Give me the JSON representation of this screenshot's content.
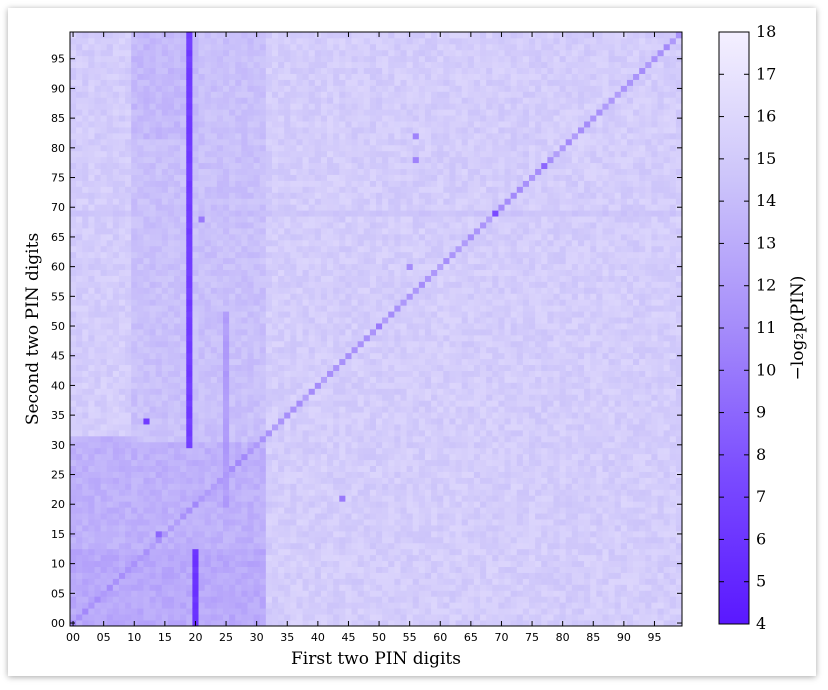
{
  "chart_data": {
    "type": "heatmap",
    "title": "",
    "xlabel": "First two PIN digits",
    "ylabel": "Second two PIN digits",
    "x_ticks": [
      "00",
      "05",
      "10",
      "15",
      "20",
      "25",
      "30",
      "35",
      "40",
      "45",
      "50",
      "55",
      "60",
      "65",
      "70",
      "75",
      "80",
      "85",
      "90",
      "95"
    ],
    "y_ticks": [
      "00",
      "05",
      "10",
      "15",
      "20",
      "25",
      "30",
      "35",
      "40",
      "45",
      "50",
      "55",
      "60",
      "65",
      "70",
      "75",
      "80",
      "85",
      "90",
      "95"
    ],
    "xlim": [
      0,
      99
    ],
    "ylim": [
      0,
      99
    ],
    "colorbar": {
      "label": "−log₂p(PIN)",
      "min": 4,
      "max": 18,
      "ticks": [
        "4",
        "5",
        "6",
        "7",
        "8",
        "9",
        "10",
        "11",
        "12",
        "13",
        "14",
        "15",
        "16",
        "17",
        "18"
      ],
      "color_low": "#5a18ff",
      "color_high": "#f4f0ff"
    },
    "background_value": 15.2,
    "regions": [
      {
        "x": [
          0,
          31
        ],
        "y": [
          0,
          31
        ],
        "value": 13.3
      },
      {
        "x": [
          0,
          31
        ],
        "y": [
          0,
          12
        ],
        "value": 12.8
      },
      {
        "x": [
          10,
          31
        ],
        "y": [
          31,
          99
        ],
        "value": 14.3
      },
      {
        "x": [
          10,
          20
        ],
        "y": [
          82,
          99
        ],
        "value": 13.8
      }
    ],
    "diagonal": {
      "value": 11.5,
      "from": 0,
      "to": 99
    },
    "lines": [
      {
        "orientation": "vertical",
        "at": 19,
        "range": [
          30,
          99
        ],
        "value": 6.5
      },
      {
        "orientation": "vertical",
        "at": 20,
        "range": [
          0,
          12
        ],
        "value": 6.0
      },
      {
        "orientation": "vertical",
        "at": 25,
        "range": [
          20,
          52
        ],
        "value": 12.0
      },
      {
        "orientation": "horizontal",
        "at": 69,
        "range": [
          0,
          99
        ],
        "value": 14.5
      }
    ],
    "points": [
      {
        "x": 12,
        "y": 34,
        "value": 6.5
      },
      {
        "x": 69,
        "y": 69,
        "value": 7.5
      },
      {
        "x": 21,
        "y": 68,
        "value": 10.0
      },
      {
        "x": 44,
        "y": 21,
        "value": 10.0
      },
      {
        "x": 56,
        "y": 82,
        "value": 10.5
      },
      {
        "x": 56,
        "y": 78,
        "value": 10.5
      },
      {
        "x": 55,
        "y": 60,
        "value": 11.0
      },
      {
        "x": 77,
        "y": 77,
        "value": 9.0
      },
      {
        "x": 50,
        "y": 50,
        "value": 10.0
      },
      {
        "x": 14,
        "y": 15,
        "value": 9.0
      }
    ]
  }
}
